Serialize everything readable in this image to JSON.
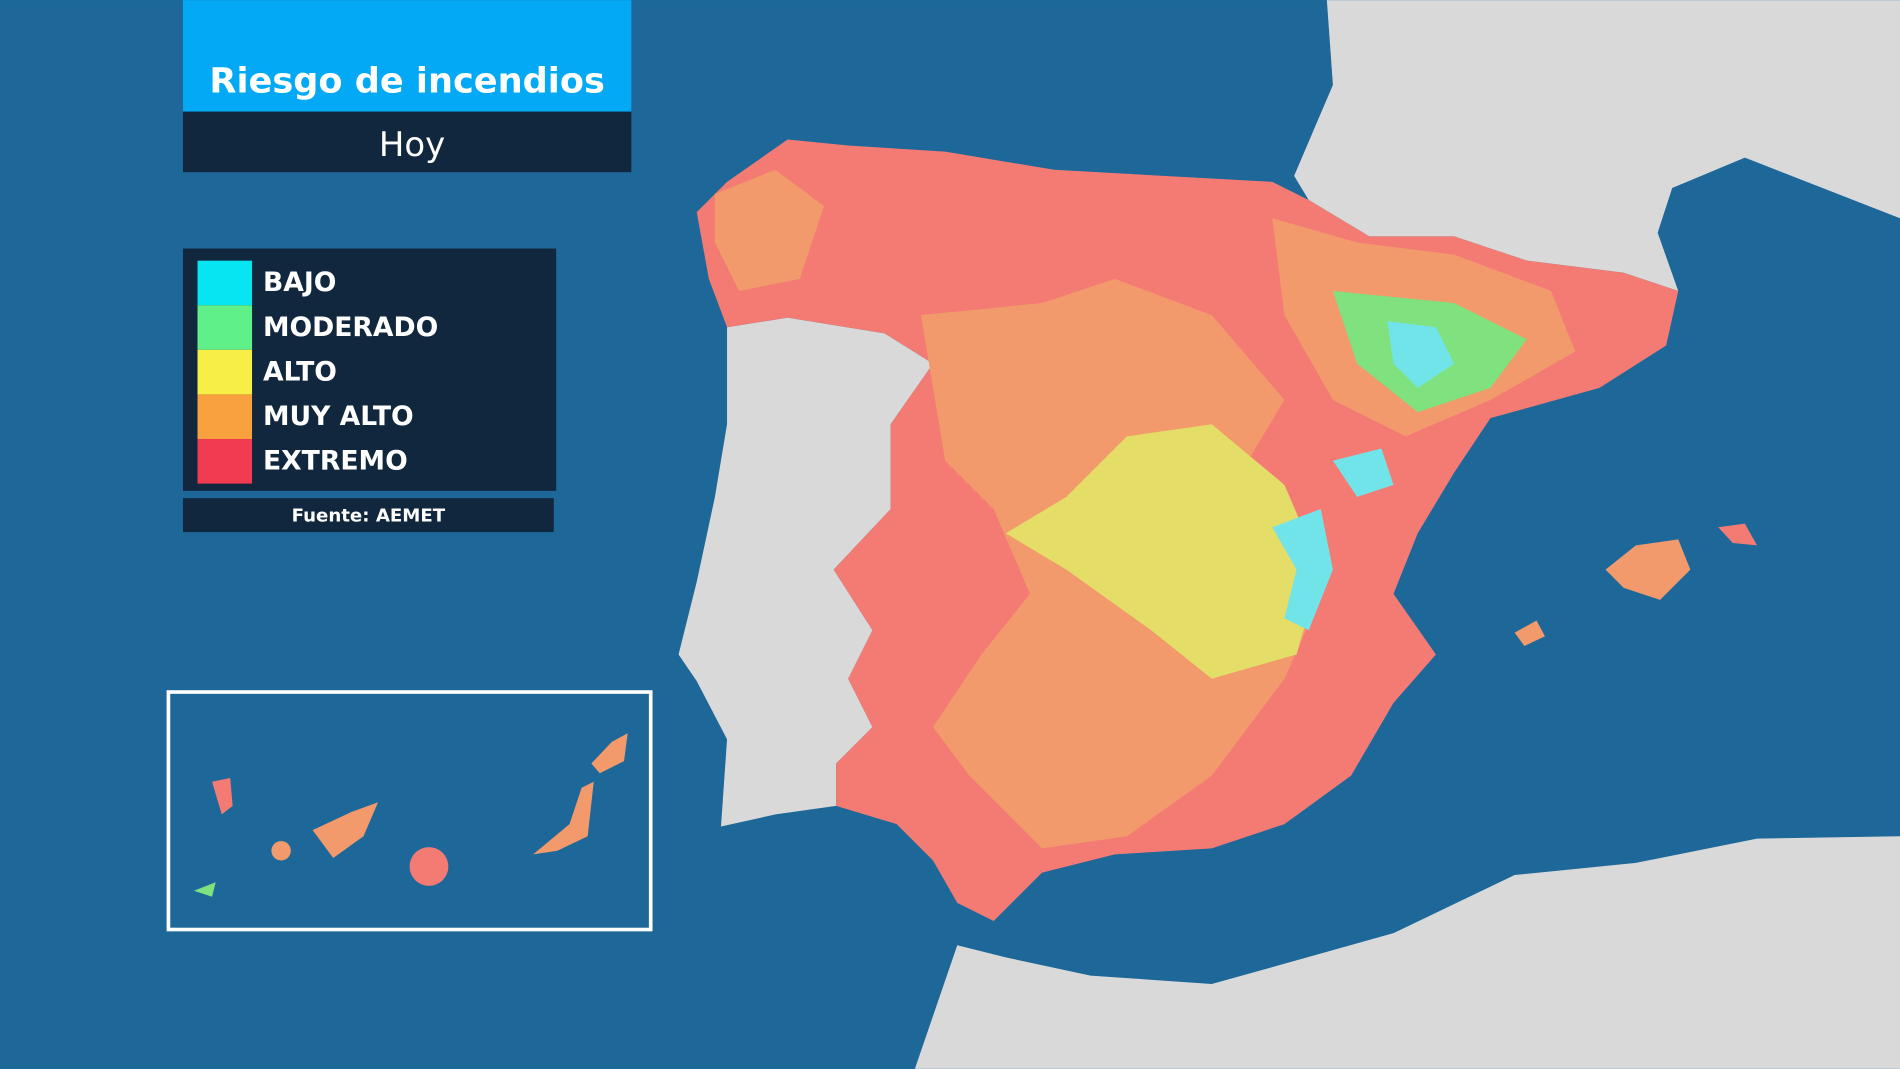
{
  "header": {
    "title": "Riesgo de incendios",
    "subtitle": "Hoy"
  },
  "legend": {
    "items": [
      {
        "label": "BAJO",
        "color": "#05e6f2"
      },
      {
        "label": "MODERADO",
        "color": "#5ff08a"
      },
      {
        "label": "ALTO",
        "color": "#f7ee46"
      },
      {
        "label": "MUY ALTO",
        "color": "#f9a03f"
      },
      {
        "label": "EXTREMO",
        "color": "#f23b51"
      }
    ]
  },
  "source": "Fuente: AEMET"
}
